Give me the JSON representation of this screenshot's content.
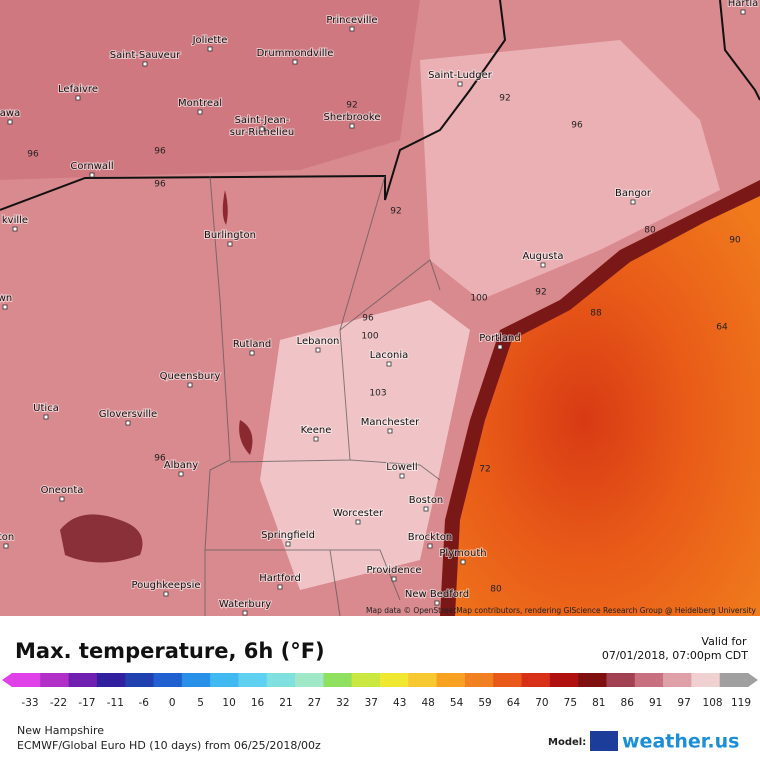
{
  "map": {
    "cities": [
      "Hartla",
      "Princeville",
      "Joliette",
      "Drummondville",
      "Saint-Sauveur",
      "Saint-Ludger",
      "Lefaivre",
      "awa",
      "Montreal",
      [
        "Saint-Jean-",
        "sur-Richelieu"
      ],
      "Sherbrooke",
      "Cornwall",
      "Bangor",
      "kville",
      "Burlington",
      "Augusta",
      "wn",
      "Portland",
      "Rutland",
      "Lebanon",
      "Laconia",
      "Queensbury",
      "Utica",
      "Gloversville",
      "Keene",
      "Manchester",
      "Albany",
      "Lowell",
      "Oneonta",
      "Boston",
      "Worcester",
      "ton",
      "Springfield",
      "Brockton",
      "Plymouth",
      "Providence",
      "Hartford",
      "Poughkeepsie",
      "New Bedford",
      "Waterbury"
    ],
    "contour_labels": [
      "96",
      "96",
      "96",
      "92",
      "92",
      "96",
      "92",
      "80",
      "90",
      "96",
      "100",
      "100",
      "92",
      "88",
      "64",
      "103",
      "96",
      "72",
      "80"
    ],
    "attribution": "Map data © OpenStreetMap contributors, rendering GIScience Research Group @ Heidelberg University"
  },
  "header": {
    "title": "Max. temperature, 6h (°F)",
    "valid_label": "Valid for",
    "valid_time": "07/01/2018, 07:00pm CDT"
  },
  "legend": {
    "ticks": [
      -33,
      -22,
      -17,
      -11,
      -6,
      0,
      5,
      10,
      16,
      21,
      27,
      32,
      37,
      43,
      48,
      54,
      59,
      64,
      70,
      75,
      81,
      86,
      91,
      97,
      108,
      119
    ],
    "colors": [
      "#e040e8",
      "#b030c8",
      "#7020b0",
      "#3020a0",
      "#2040b0",
      "#2060d0",
      "#2890e8",
      "#40b8f0",
      "#60d0f0",
      "#80e0e0",
      "#a0e8c8",
      "#90e060",
      "#c8e840",
      "#f0e830",
      "#f8c830",
      "#f8a020",
      "#f08020",
      "#e85818",
      "#d83018",
      "#b01010",
      "#801010",
      "#a04050",
      "#c87080",
      "#e0a0a8",
      "#f0d0d0",
      "#a0a0a0"
    ]
  },
  "footer": {
    "region": "New Hampshire",
    "model_run": "ECMWF/Global Euro HD (10 days) from 06/25/2018/00z",
    "model_label": "Model:",
    "brand": "weather.us"
  }
}
